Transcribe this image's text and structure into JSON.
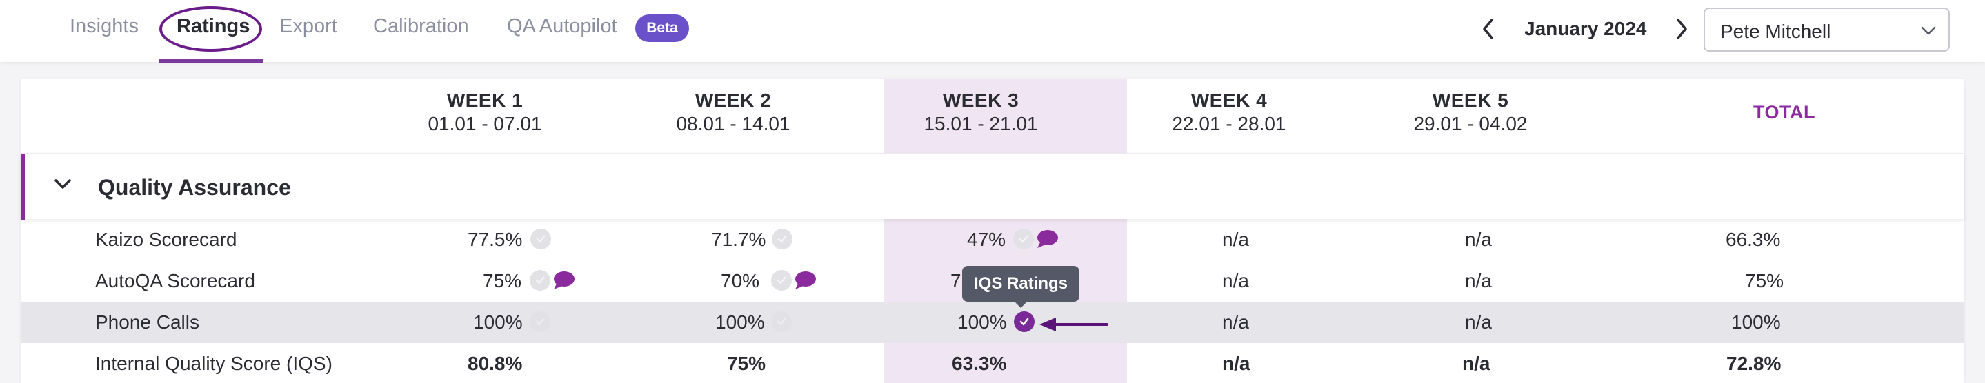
{
  "nav": {
    "tabs": [
      {
        "label": "Insights"
      },
      {
        "label": "Ratings"
      },
      {
        "label": "Export"
      },
      {
        "label": "Calibration"
      },
      {
        "label": "QA Autopilot"
      }
    ],
    "active_tab": "Ratings",
    "beta_badge": "Beta",
    "month": "January 2024",
    "user": "Pete Mitchell"
  },
  "table": {
    "weeks": [
      {
        "label": "WEEK 1",
        "dates": "01.01 - 07.01"
      },
      {
        "label": "WEEK 2",
        "dates": "08.01 - 14.01"
      },
      {
        "label": "WEEK 3",
        "dates": "15.01 - 21.01"
      },
      {
        "label": "WEEK 4",
        "dates": "22.01 - 28.01"
      },
      {
        "label": "WEEK 5",
        "dates": "29.01 - 04.02"
      }
    ],
    "total_label": "TOTAL",
    "section_title": "Quality Assurance",
    "rows": [
      {
        "name": "Kaizo Scorecard",
        "w1": "77.5%",
        "w2": "71.7%",
        "w3": "47%",
        "w4": "n/a",
        "w5": "n/a",
        "total": "66.3%"
      },
      {
        "name": "AutoQA Scorecard",
        "w1": "75%",
        "w2": "70%",
        "w3": "7",
        "w4": "n/a",
        "w5": "n/a",
        "total": "75%"
      },
      {
        "name": "Phone Calls",
        "w1": "100%",
        "w2": "100%",
        "w3": "100%",
        "w4": "n/a",
        "w5": "n/a",
        "total": "100%"
      },
      {
        "name": "Internal Quality Score (IQS)",
        "w1": "80.8%",
        "w2": "75%",
        "w3": "63.3%",
        "w4": "n/a",
        "w5": "n/a",
        "total": "72.8%"
      }
    ],
    "tooltip": "IQS Ratings"
  },
  "colors": {
    "accent": "#8a2a9c",
    "beta": "#6a51c9",
    "week3_highlight": "#f0e6f3",
    "tooltip_bg": "#555866"
  }
}
